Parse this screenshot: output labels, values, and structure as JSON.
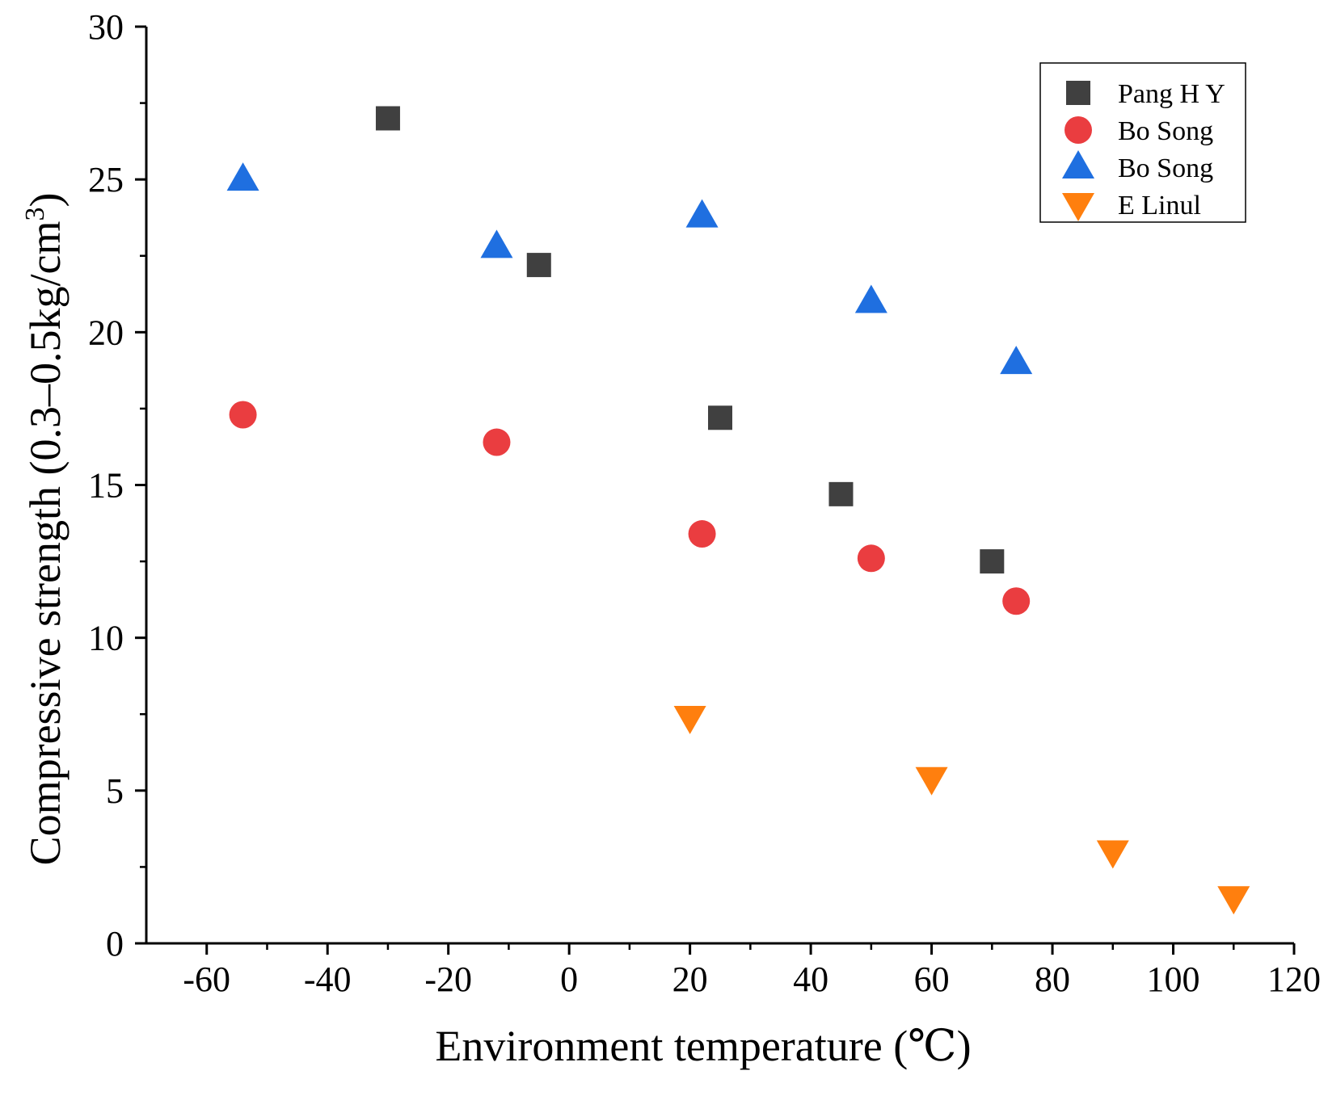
{
  "chart_data": {
    "type": "scatter",
    "title": "",
    "xlabel": "Environment temperature  (℃)",
    "ylabel_main": "Compressive strength (0.3–0.5kg/cm",
    "ylabel_sup": "3",
    "ylabel_close": ")",
    "xlim": [
      -70,
      120
    ],
    "ylim": [
      0,
      30
    ],
    "x_ticks": [
      -60,
      -40,
      -20,
      0,
      20,
      40,
      60,
      80,
      100,
      120
    ],
    "y_ticks": [
      0,
      5,
      10,
      15,
      20,
      25,
      30
    ],
    "legend_position": "top-right",
    "series": [
      {
        "name": "Pang H Y",
        "marker": "square",
        "color": "#404040",
        "x": [
          -30,
          -5,
          25,
          45,
          70
        ],
        "y": [
          27.0,
          22.2,
          17.2,
          14.7,
          12.5
        ]
      },
      {
        "name": "Bo Song",
        "marker": "circle",
        "color": "#ea3d40",
        "x": [
          -54,
          -12,
          22,
          50,
          74
        ],
        "y": [
          17.3,
          16.4,
          13.4,
          12.6,
          11.2
        ]
      },
      {
        "name": "Bo Song",
        "marker": "triangle-up",
        "color": "#1f6fe0",
        "x": [
          -54,
          -12,
          22,
          50,
          74
        ],
        "y": [
          25.0,
          22.8,
          23.8,
          21.0,
          19.0
        ]
      },
      {
        "name": "E Linul",
        "marker": "triangle-down",
        "color": "#ff7f0e",
        "x": [
          20,
          60,
          90,
          110
        ],
        "y": [
          7.4,
          5.4,
          3.0,
          1.5
        ]
      }
    ]
  }
}
